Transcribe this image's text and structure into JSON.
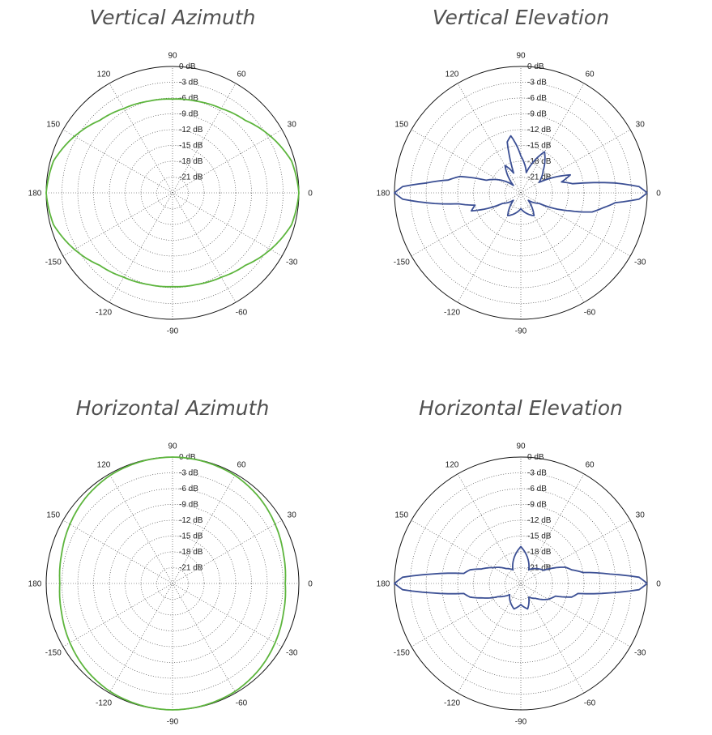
{
  "colors": {
    "green_trace": "#5db53d",
    "blue_trace": "#3b4f94",
    "grid": "#333333",
    "title": "#505050"
  },
  "chart_data": [
    {
      "type": "polar",
      "title": "Vertical Azimuth",
      "color": "#5db53d",
      "radial_ticks": [
        "0 dB",
        "-3 dB",
        "-6 dB",
        "-9 dB",
        "-12 dB",
        "-15 dB",
        "-18 dB",
        "-21 dB"
      ],
      "radial_range_db": [
        -24,
        0
      ],
      "angle_ticks": [
        "0",
        "30",
        "60",
        "90",
        "120",
        "150",
        "180",
        "-150",
        "-120",
        "-90",
        "-60",
        "-30"
      ],
      "series": [
        {
          "theta_deg": [
            0,
            15,
            30,
            45,
            60,
            75,
            90,
            105,
            120,
            135,
            150,
            165,
            180,
            195,
            210,
            225,
            240,
            255,
            270,
            285,
            300,
            315,
            330,
            345
          ],
          "r_db": [
            0,
            -0.6,
            -2.5,
            -4.5,
            -5.5,
            -6.0,
            -6.2,
            -6.0,
            -5.5,
            -4.5,
            -2.5,
            -0.6,
            0,
            -0.6,
            -2.5,
            -4.5,
            -5.5,
            -6.0,
            -6.2,
            -6.0,
            -5.5,
            -4.5,
            -2.5,
            -0.6
          ]
        }
      ]
    },
    {
      "type": "polar",
      "title": "Vertical Elevation",
      "color": "#3b4f94",
      "radial_ticks": [
        "0 dB",
        "-3 dB",
        "-6 dB",
        "-9 dB",
        "-12 dB",
        "-15 dB",
        "-18 dB",
        "-21 dB"
      ],
      "radial_range_db": [
        -24,
        0
      ],
      "angle_ticks": [
        "0",
        "30",
        "60",
        "90",
        "120",
        "150",
        "180",
        "-150",
        "-120",
        "-90",
        "-60",
        "-30"
      ],
      "series": [
        {
          "theta_deg": [
            0,
            3,
            6,
            10,
            15,
            20,
            30,
            45,
            60,
            75,
            90,
            100,
            105,
            110,
            120,
            135,
            150,
            160,
            165,
            170,
            174,
            177,
            180,
            183,
            186,
            190,
            195,
            200,
            210,
            225,
            240,
            255,
            270,
            285,
            300,
            315,
            330,
            340,
            345,
            350,
            354,
            357
          ],
          "r_db": [
            0,
            -1.5,
            -6,
            -14,
            -16,
            -14,
            -20,
            -18,
            -15,
            -20,
            -17,
            -13,
            -14,
            -20,
            -18,
            -22,
            -19,
            -17,
            -12,
            -10,
            -6,
            -1.5,
            0,
            -1.5,
            -6,
            -12,
            -15,
            -14,
            -20,
            -22,
            -19,
            -20,
            -21,
            -20,
            -19,
            -22,
            -20,
            -14,
            -10,
            -8,
            -6,
            -1.5
          ]
        }
      ]
    },
    {
      "type": "polar",
      "title": "Horizontal Azimuth",
      "color": "#5db53d",
      "radial_ticks": [
        "0 dB",
        "-3 dB",
        "-6 dB",
        "-9 dB",
        "-12 dB",
        "-15 dB",
        "-18 dB",
        "-21 dB"
      ],
      "radial_range_db": [
        -24,
        0
      ],
      "angle_ticks": [
        "0",
        "30",
        "60",
        "90",
        "120",
        "150",
        "180",
        "-150",
        "-120",
        "-90",
        "-60",
        "-30"
      ],
      "series": [
        {
          "theta_deg": [
            0,
            15,
            30,
            45,
            60,
            75,
            90,
            105,
            120,
            135,
            150,
            165,
            180,
            195,
            210,
            225,
            240,
            255,
            270,
            285,
            300,
            315,
            330,
            345
          ],
          "r_db": [
            -2.6,
            -2.2,
            -1.5,
            -0.8,
            -0.3,
            -0.1,
            0,
            -0.1,
            -0.3,
            -0.8,
            -1.5,
            -2.2,
            -2.6,
            -2.2,
            -1.5,
            -0.8,
            -0.3,
            -0.1,
            0,
            -0.1,
            -0.3,
            -0.8,
            -1.5,
            -2.2
          ]
        }
      ]
    },
    {
      "type": "polar",
      "title": "Horizontal Elevation",
      "color": "#3b4f94",
      "radial_ticks": [
        "0 dB",
        "-3 dB",
        "-6 dB",
        "-9 dB",
        "-12 dB",
        "-15 dB",
        "-18 dB",
        "-21 dB"
      ],
      "radial_range_db": [
        -24,
        0
      ],
      "angle_ticks": [
        "0",
        "30",
        "60",
        "90",
        "120",
        "150",
        "180",
        "-150",
        "-120",
        "-90",
        "-60",
        "-30"
      ],
      "series": [
        {
          "theta_deg": [
            0,
            3,
            6,
            10,
            15,
            20,
            30,
            45,
            60,
            75,
            90,
            105,
            120,
            135,
            150,
            160,
            165,
            170,
            174,
            177,
            180,
            183,
            186,
            190,
            195,
            200,
            210,
            225,
            240,
            255,
            270,
            285,
            300,
            315,
            330,
            340,
            345,
            350,
            354,
            357
          ],
          "r_db": [
            0,
            -1.5,
            -7,
            -12,
            -14,
            -15,
            -19,
            -20,
            -21,
            -19,
            -17,
            -19,
            -21,
            -20,
            -18,
            -16,
            -14,
            -13,
            -7,
            -1.5,
            0,
            -1.5,
            -7,
            -13,
            -14,
            -16,
            -19,
            -21,
            -20,
            -19,
            -20,
            -19,
            -21,
            -20,
            -18,
            -17,
            -14,
            -13,
            -7,
            -1.5
          ]
        }
      ]
    }
  ]
}
